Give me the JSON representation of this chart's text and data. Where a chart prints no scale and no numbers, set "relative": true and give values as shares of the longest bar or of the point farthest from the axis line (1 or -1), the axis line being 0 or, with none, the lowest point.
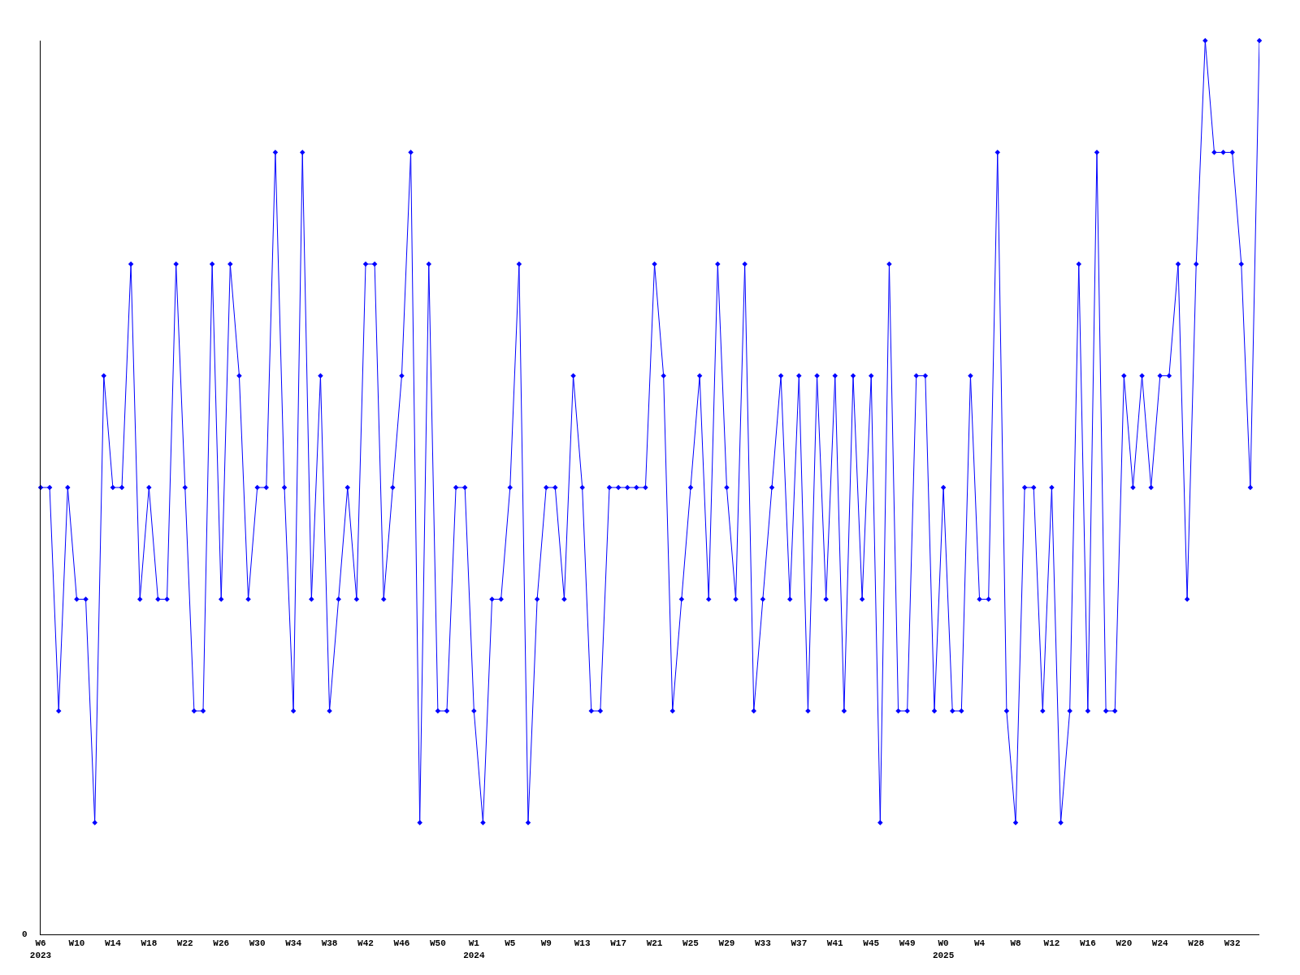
{
  "chart_data": {
    "type": "line",
    "relative": true,
    "marker": "diamond",
    "line_style": "solid",
    "annotations": [
      "0"
    ],
    "categories": [
      "W6\n2023",
      null,
      null,
      null,
      "W10",
      null,
      null,
      null,
      "W14",
      null,
      null,
      null,
      "W18",
      null,
      null,
      null,
      "W22",
      null,
      null,
      null,
      "W26",
      null,
      null,
      null,
      "W30",
      null,
      null,
      null,
      "W34",
      null,
      null,
      null,
      "W38",
      null,
      null,
      null,
      "W42",
      null,
      null,
      null,
      "W46",
      null,
      null,
      null,
      "W50",
      null,
      null,
      null,
      "W1\n2024",
      null,
      null,
      null,
      "W5",
      null,
      null,
      null,
      "W9",
      null,
      null,
      null,
      "W13",
      null,
      null,
      null,
      "W17",
      null,
      null,
      null,
      "W21",
      null,
      null,
      null,
      "W25",
      null,
      null,
      null,
      "W29",
      null,
      null,
      null,
      "W33",
      null,
      null,
      null,
      "W37",
      null,
      null,
      null,
      "W41",
      null,
      null,
      null,
      "W45",
      null,
      null,
      null,
      "W49",
      null,
      null,
      null,
      "W0\n2025",
      null,
      null,
      null,
      "W4",
      null,
      null,
      null,
      "W8",
      null,
      null,
      null,
      "W12",
      null,
      null,
      null,
      "W16",
      null,
      null,
      null,
      "W20",
      null,
      null,
      null,
      "W24",
      null,
      null,
      null,
      "W28",
      null,
      null,
      null,
      "W32",
      null,
      null,
      null
    ],
    "series": [
      {
        "color": "#0000ff",
        "values": [
          0.5,
          0.5,
          0.25,
          0.5,
          0.375,
          0.375,
          0.125,
          0.625,
          0.5,
          0.5,
          0.75,
          0.375,
          0.5,
          0.375,
          0.375,
          0.75,
          0.5,
          0.25,
          0.25,
          0.75,
          0.375,
          0.75,
          0.625,
          0.375,
          0.5,
          0.5,
          0.875,
          0.5,
          0.25,
          0.875,
          0.375,
          0.625,
          0.25,
          0.375,
          0.5,
          0.375,
          0.75,
          0.75,
          0.375,
          0.5,
          0.625,
          0.875,
          0.125,
          0.75,
          0.25,
          0.25,
          0.5,
          0.5,
          0.25,
          0.125,
          0.375,
          0.375,
          0.5,
          0.75,
          0.125,
          0.375,
          0.5,
          0.5,
          0.375,
          0.625,
          0.5,
          0.25,
          0.25,
          0.5,
          0.5,
          0.5,
          0.5,
          0.5,
          0.75,
          0.625,
          0.25,
          0.375,
          0.5,
          0.625,
          0.375,
          0.75,
          0.5,
          0.375,
          0.75,
          0.25,
          0.375,
          0.5,
          0.625,
          0.375,
          0.625,
          0.25,
          0.625,
          0.375,
          0.625,
          0.25,
          0.625,
          0.375,
          0.625,
          0.125,
          0.75,
          0.25,
          0.25,
          0.625,
          0.625,
          0.25,
          0.5,
          0.25,
          0.25,
          0.625,
          0.375,
          0.375,
          0.875,
          0.25,
          0.125,
          0.5,
          0.5,
          0.25,
          0.5,
          0.125,
          0.25,
          0.75,
          0.25,
          0.875,
          0.25,
          0.25,
          0.625,
          0.5,
          0.625,
          0.5,
          0.625,
          0.625,
          0.75,
          0.375,
          0.75,
          1,
          0.875,
          0.875,
          0.875,
          0.75,
          0.5,
          1
        ]
      }
    ]
  }
}
